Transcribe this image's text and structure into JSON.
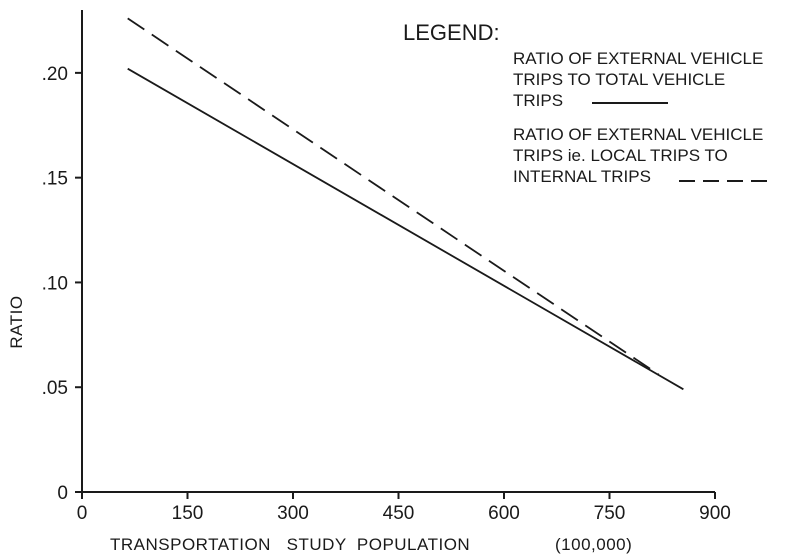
{
  "chart_data": {
    "type": "line",
    "xlabel": "TRANSPORTATION   STUDY  POPULATION",
    "xunit": "(100,000)",
    "ylabel": "RATIO",
    "xlim": [
      0,
      900
    ],
    "ylim": [
      0,
      0.23
    ],
    "x_ticks": [
      "0",
      "150",
      "300",
      "450",
      "600",
      "750",
      "900"
    ],
    "y_ticks": [
      "0",
      ".05",
      ".10",
      ".15",
      ".20"
    ],
    "grid": false,
    "legend_position": "top-right",
    "legend_title": "LEGEND:",
    "series": [
      {
        "name_lines": [
          "RATIO OF EXTERNAL VEHICLE",
          "TRIPS TO TOTAL VEHICLE",
          "TRIPS"
        ],
        "style": "solid",
        "x": [
          65,
          855
        ],
        "y": [
          0.202,
          0.049
        ]
      },
      {
        "name_lines": [
          "RATIO OF EXTERNAL VEHICLE",
          "TRIPS  ie.  LOCAL TRIPS TO",
          "INTERNAL TRIPS"
        ],
        "style": "dashed",
        "x": [
          65,
          820
        ],
        "y": [
          0.226,
          0.056
        ]
      }
    ],
    "line_color": "#1a1a1a"
  }
}
